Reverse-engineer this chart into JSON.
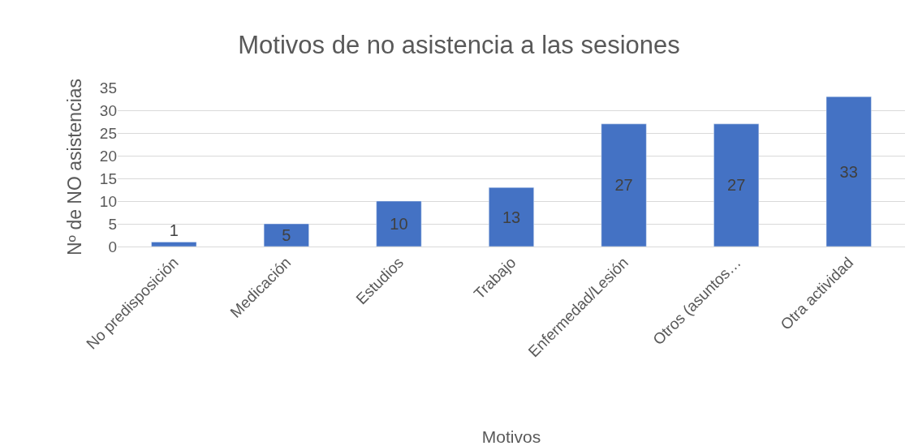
{
  "chart_data": {
    "type": "bar",
    "title": "Motivos de no asistencia a las sesiones",
    "xlabel": "Motivos",
    "ylabel": "Nº de NO asistencias",
    "categories": [
      "No predisposición",
      "Medicación",
      "Estudios",
      "Trabajo",
      "Enfermedad/Lesión",
      "Otros (asuntos…",
      "Otra actividad"
    ],
    "values": [
      1,
      5,
      10,
      13,
      27,
      27,
      33
    ],
    "color": "#4472c4",
    "ylim": [
      0,
      35
    ],
    "yticks": [
      0,
      5,
      10,
      15,
      20,
      25,
      30,
      35
    ],
    "grid": "y",
    "data_labels": true,
    "legend": false
  }
}
